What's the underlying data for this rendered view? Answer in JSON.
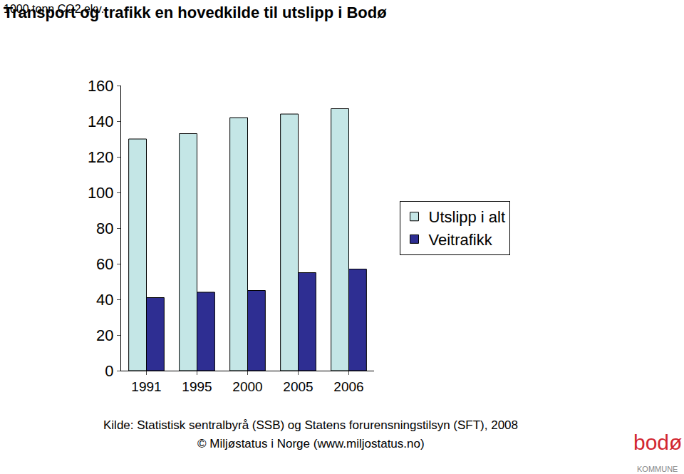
{
  "chart_data": {
    "type": "bar",
    "title": "Transport og trafikk en hovedkilde til utslipp i Bodø",
    "subtitle": "1000 tonn CO2 ekv.",
    "categories": [
      "1991",
      "1995",
      "2000",
      "2005",
      "2006"
    ],
    "series": [
      {
        "name": "Utslipp i alt",
        "color": "#c4e6e6",
        "values": [
          130,
          133,
          142,
          144,
          147
        ]
      },
      {
        "name": "Veitrafikk",
        "color": "#2e2e92",
        "values": [
          41,
          44,
          45,
          55,
          57
        ]
      }
    ],
    "ylim": [
      0,
      160
    ],
    "yticks": [
      0,
      20,
      40,
      60,
      80,
      100,
      120,
      140,
      160
    ],
    "grid": false,
    "legend": "right",
    "annotations": [
      "Kilde: Statistisk sentralbyrå (SSB) og Statens forurensningstilsyn (SFT), 2008",
      "© Miljøstatus i Norge (www.miljostatus.no)",
      "bodø",
      "KOMMUNE"
    ]
  }
}
